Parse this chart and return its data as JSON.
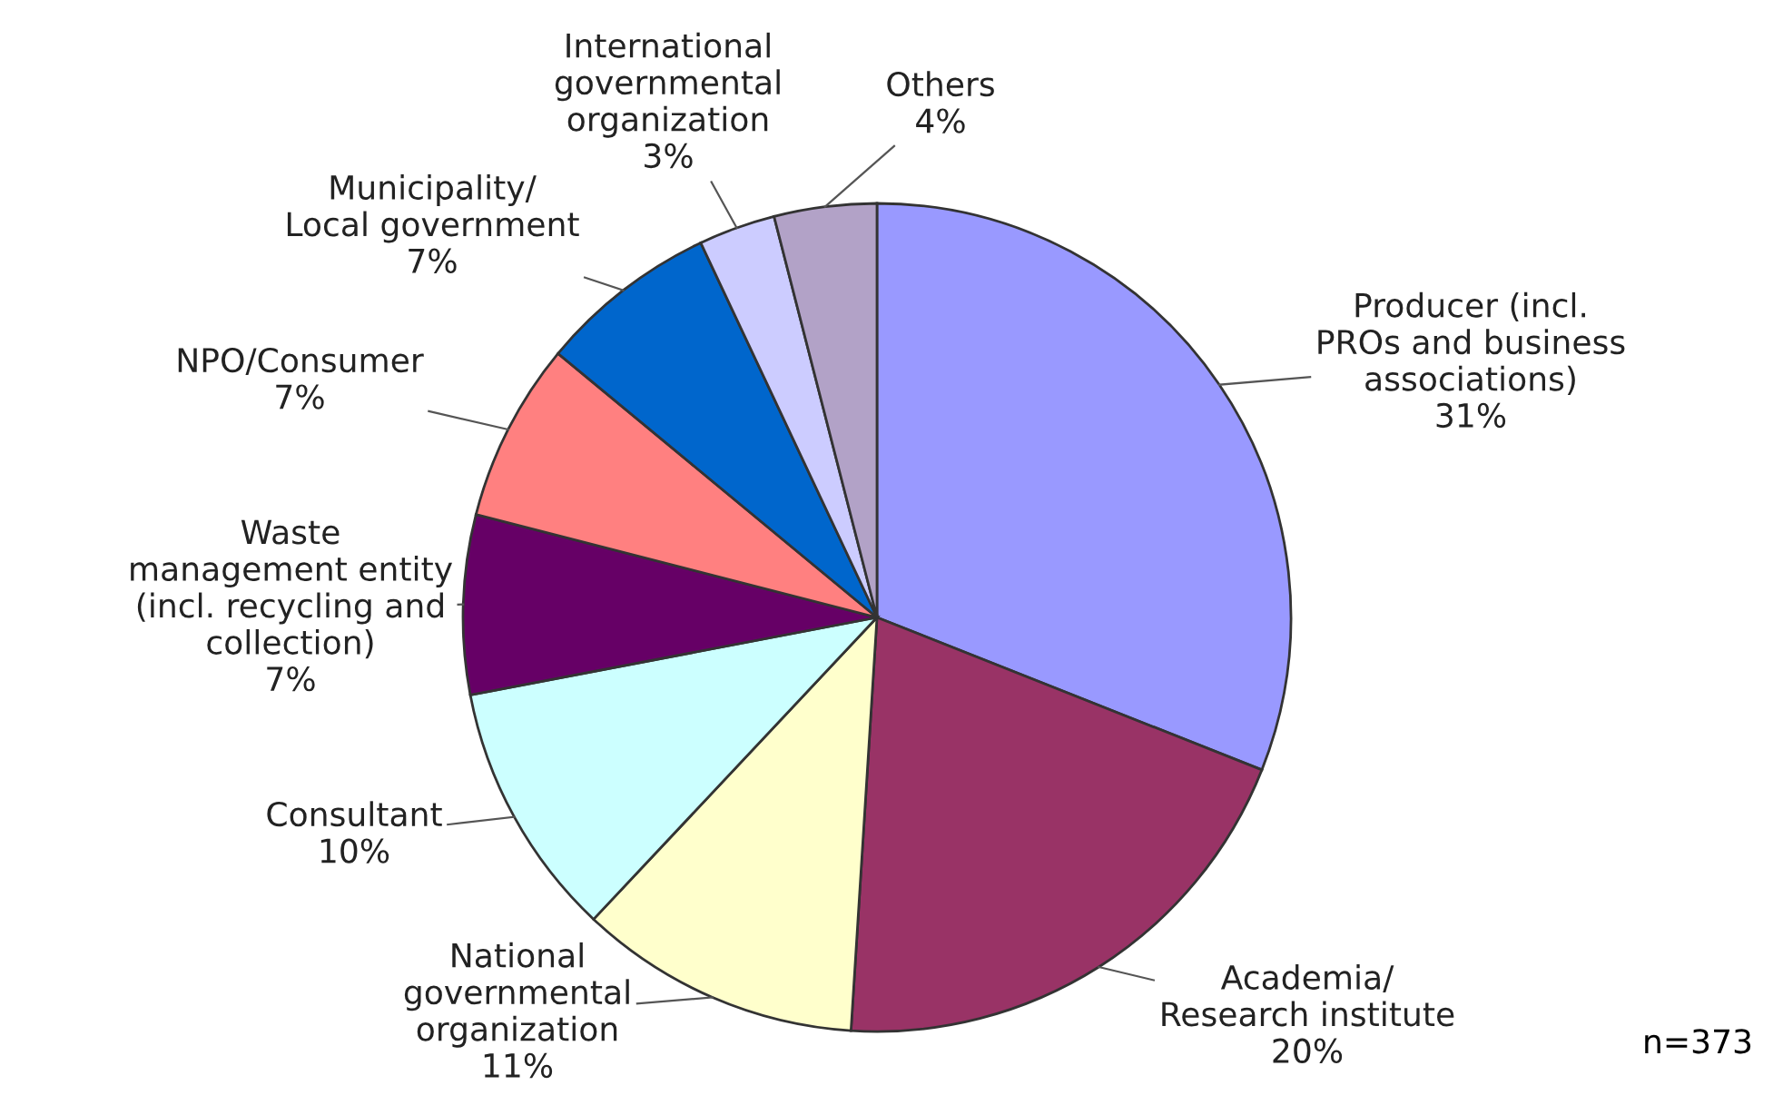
{
  "chart_data": {
    "type": "pie",
    "categories": [
      "Producer (incl.\nPROs and business\nassociations)",
      "Academia/\nResearch institute",
      "National\ngovernmental\norganization",
      "Consultant",
      "Waste\nmanagement entity\n(incl. recycling and\ncollection)",
      "NPO/Consumer",
      "Municipality/\nLocal government",
      "International\ngovernmental\norganization",
      "Others"
    ],
    "values": [
      31,
      20,
      11,
      10,
      7,
      7,
      7,
      3,
      4
    ],
    "value_labels": [
      "31%",
      "20%",
      "11%",
      "10%",
      "7%",
      "7%",
      "7%",
      "3%",
      "4%"
    ],
    "colors": [
      "#9999ff",
      "#993366",
      "#ffffcc",
      "#ccffff",
      "#660066",
      "#ff8080",
      "#0066cc",
      "#ccccff",
      "#b2a2c7"
    ],
    "annotations": [
      "n=373"
    ],
    "legend": false
  }
}
